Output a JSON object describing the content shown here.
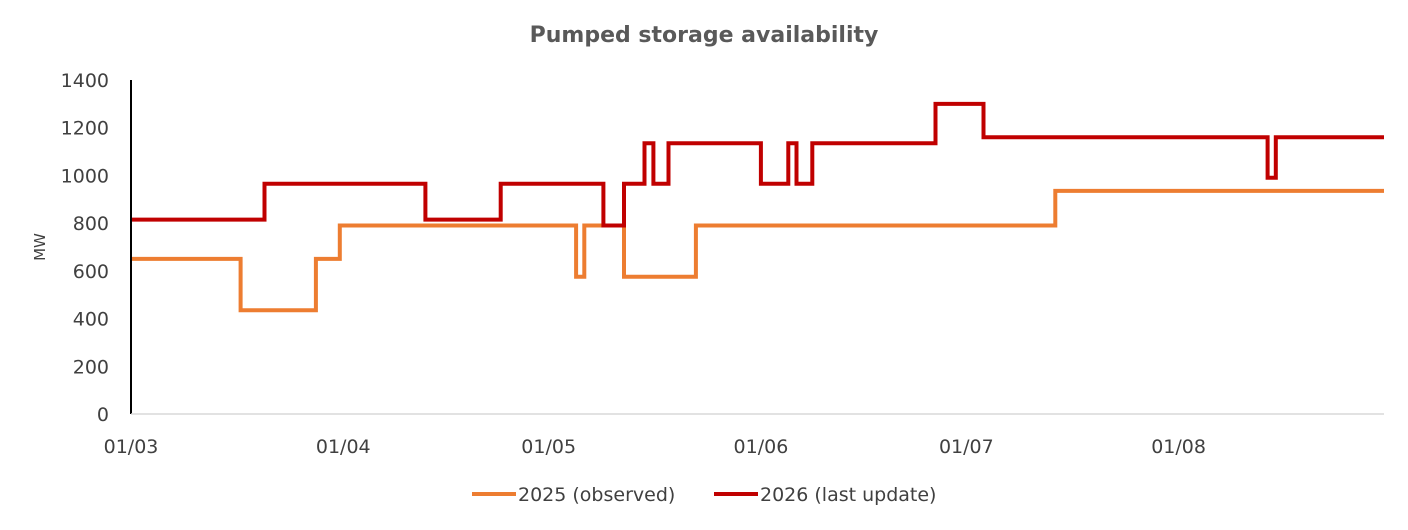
{
  "chart_data": {
    "type": "line",
    "step": true,
    "title": "Pumped storage availability",
    "xlabel": "",
    "ylabel": "MW",
    "ylim": [
      0,
      1400
    ],
    "yticks": [
      0,
      200,
      400,
      600,
      800,
      1000,
      1200,
      1400
    ],
    "xlim_days": [
      0,
      183
    ],
    "xticks": [
      {
        "label": "01/03",
        "day": 0
      },
      {
        "label": "01/04",
        "day": 31
      },
      {
        "label": "01/05",
        "day": 61
      },
      {
        "label": "01/06",
        "day": 92
      },
      {
        "label": "01/07",
        "day": 122
      },
      {
        "label": "01/08",
        "day": 153
      }
    ],
    "legend_position": "bottom",
    "series": [
      {
        "name": "2025 (observed)",
        "color": "#ED7D31",
        "points": [
          [
            0,
            650
          ],
          [
            16,
            650
          ],
          [
            16,
            435
          ],
          [
            27,
            435
          ],
          [
            27,
            650
          ],
          [
            30.5,
            650
          ],
          [
            30.5,
            790
          ],
          [
            65,
            790
          ],
          [
            65,
            575
          ],
          [
            66.2,
            575
          ],
          [
            66.2,
            790
          ],
          [
            72,
            790
          ],
          [
            72,
            575
          ],
          [
            82.5,
            575
          ],
          [
            82.5,
            790
          ],
          [
            135,
            790
          ],
          [
            135,
            935
          ],
          [
            183,
            935
          ]
        ]
      },
      {
        "name": "2026 (last update)",
        "color": "#C00000",
        "points": [
          [
            0,
            815
          ],
          [
            19.5,
            815
          ],
          [
            19.5,
            965
          ],
          [
            43,
            965
          ],
          [
            43,
            815
          ],
          [
            54,
            815
          ],
          [
            54,
            965
          ],
          [
            69,
            965
          ],
          [
            69,
            790
          ],
          [
            72,
            790
          ],
          [
            72,
            965
          ],
          [
            75,
            965
          ],
          [
            75,
            1135
          ],
          [
            76.3,
            1135
          ],
          [
            76.3,
            965
          ],
          [
            78.5,
            965
          ],
          [
            78.5,
            1135
          ],
          [
            92,
            1135
          ],
          [
            92,
            965
          ],
          [
            96,
            965
          ],
          [
            96,
            1135
          ],
          [
            97.2,
            1135
          ],
          [
            97.2,
            965
          ],
          [
            99.5,
            965
          ],
          [
            99.5,
            1135
          ],
          [
            117.5,
            1135
          ],
          [
            117.5,
            1300
          ],
          [
            124.5,
            1300
          ],
          [
            124.5,
            1160
          ],
          [
            166,
            1160
          ],
          [
            166,
            990
          ],
          [
            167.2,
            990
          ],
          [
            167.2,
            1160
          ],
          [
            183,
            1160
          ]
        ]
      }
    ]
  }
}
